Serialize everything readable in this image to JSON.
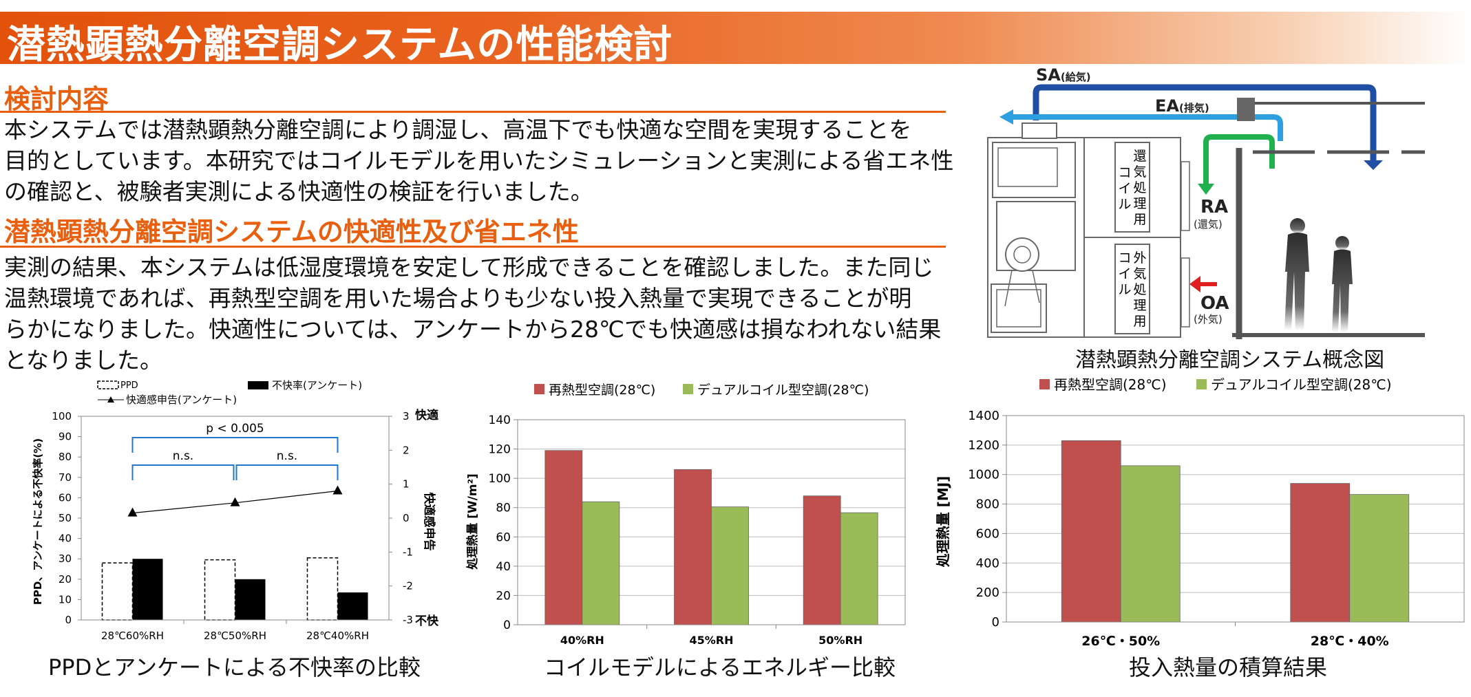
{
  "title": "潜熱顕熱分離空調システムの性能検討",
  "section1": {
    "heading": "検討内容",
    "lines": [
      "本システムでは潜熱顕熱分離空調により調湿し、高温下でも快適な空間を実現することを",
      "目的としています。本研究ではコイルモデルを用いたシミュレーションと実測による省エネ性",
      "の確認と、被験者実測による快適性の検証を行いました。"
    ]
  },
  "section2": {
    "heading": "潜熱顕熱分離空調システムの快適性及び省エネ性",
    "lines": [
      "実測の結果、本システムは低湿度環境を安定して形成できることを確認しました。また同じ",
      "温熱環境であれば、再熱型空調を用いた場合よりも少ない投入熱量で実現できることが明",
      "らかになりました。快適性については、アンケートから28℃でも快適感は損なわれない結果",
      "となりました。"
    ]
  },
  "diagram": {
    "caption": "潜熱顕熱分離空調システム概念図",
    "sa_main": "SA",
    "sa_sub": "(給気)",
    "ea_main": "EA",
    "ea_sub": "(排気)",
    "ra_main": "RA",
    "ra_sub": "(還気)",
    "oa_main": "OA",
    "oa_sub": "(外気)",
    "coil_return": [
      "還",
      "気",
      "処",
      "理",
      "用"
    ],
    "coil_return_prefix": [
      "コ",
      "イ",
      "ル"
    ],
    "coil_outside": [
      "外",
      "気",
      "処",
      "理",
      "用"
    ],
    "coil_outside_prefix": [
      "コ",
      "イ",
      "ル"
    ],
    "colors": {
      "sa": "#1f4ea3",
      "ea": "#2ea0e0",
      "ra": "#20b050",
      "oa": "#e02020"
    }
  },
  "chart_data": [
    {
      "type": "bar",
      "caption": "PPDとアンケートによる不快率の比較",
      "categories": [
        "28℃60%RH",
        "28℃50%RH",
        "28℃40%RH"
      ],
      "series": [
        {
          "name": "PPD",
          "values": [
            28,
            29.5,
            30.5
          ],
          "style": "dashed-outline"
        },
        {
          "name": "不快率(アンケート)",
          "values": [
            30,
            20,
            13.5
          ],
          "color": "#000000"
        }
      ],
      "line_series": {
        "name": "快適感申告(アンケート)",
        "values": [
          0.15,
          0.45,
          0.8
        ],
        "axis": "right"
      },
      "ylabel": "PPD、アンケートによる不快率(%)",
      "ylim": [
        0,
        100
      ],
      "yticks": [
        0,
        10,
        20,
        30,
        40,
        50,
        60,
        70,
        80,
        90,
        100
      ],
      "y2label": "快適感申告",
      "y2lim": [
        -3,
        3
      ],
      "y2ticks": [
        "-3",
        "-2",
        "-1",
        "0",
        "1",
        "2",
        "3"
      ],
      "y2_top_label": "快適",
      "y2_bottom_label": "不快",
      "annotations": [
        "p < 0.005",
        "n.s.",
        "n.s."
      ],
      "colors": {
        "bracket": "#1f78c8"
      }
    },
    {
      "type": "bar",
      "caption": "コイルモデルによるエネルギー比較",
      "categories": [
        "40%RH",
        "45%RH",
        "50%RH"
      ],
      "series": [
        {
          "name": "再熱型空調(28℃)",
          "values": [
            119,
            106,
            88
          ],
          "color": "#c0504d"
        },
        {
          "name": "デュアルコイル型空調(28℃)",
          "values": [
            84,
            80.5,
            76.5
          ],
          "color": "#9bbb59"
        }
      ],
      "ylabel": "処理熱量 [W/m²]",
      "ylim": [
        0,
        140
      ],
      "yticks": [
        0,
        20,
        40,
        60,
        80,
        100,
        120,
        140
      ]
    },
    {
      "type": "bar",
      "caption": "投入熱量の積算結果",
      "categories": [
        "26℃・50%",
        "28℃・40%"
      ],
      "series": [
        {
          "name": "再熱型空調(28℃)",
          "values": [
            1230,
            940
          ],
          "color": "#c0504d"
        },
        {
          "name": "デュアルコイル型空調(28℃)",
          "values": [
            1060,
            865
          ],
          "color": "#9bbb59"
        }
      ],
      "ylabel": "処理熱量 [MJ]",
      "ylim": [
        0,
        1400
      ],
      "yticks": [
        0,
        200,
        400,
        600,
        800,
        1000,
        1200,
        1400
      ]
    }
  ]
}
